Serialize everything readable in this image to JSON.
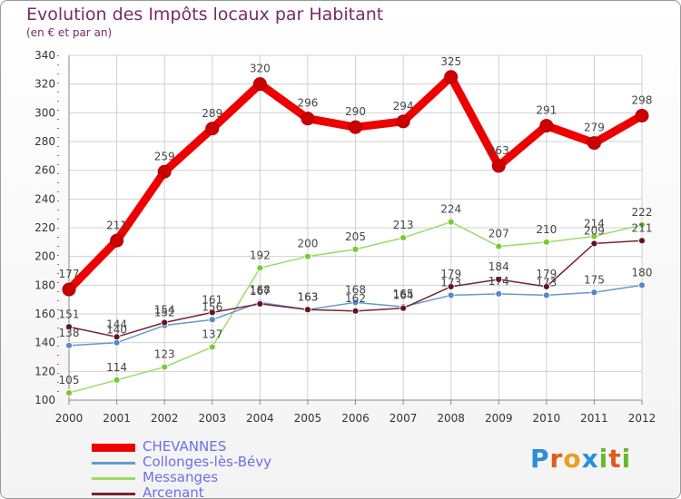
{
  "header": {
    "title": "Evolution des Impôts locaux par Habitant",
    "subtitle": "(en € et par an)"
  },
  "chart_data": {
    "type": "line",
    "title": "Evolution des Impôts locaux par Habitant",
    "subtitle": "(en € et par an)",
    "x": [
      "2000",
      "2001",
      "2002",
      "2003",
      "2004",
      "2005",
      "2006",
      "2007",
      "2008",
      "2009",
      "2010",
      "2011",
      "2012"
    ],
    "ylim": [
      100,
      340
    ],
    "yticks": [
      100,
      120,
      140,
      160,
      180,
      200,
      220,
      240,
      260,
      280,
      300,
      320,
      340
    ],
    "ytick_labels": [
      "100",
      "120",
      "140",
      "160",
      "180",
      "200",
      "220",
      "240",
      "260",
      "280",
      "300",
      "320",
      "340"
    ],
    "grid": true,
    "legend_position": "bottom-left",
    "series": [
      {
        "name": "CHEVANNES",
        "color": "#ee0000",
        "point_color": "#cc0000",
        "values": [
          177,
          211,
          259,
          289,
          320,
          296,
          290,
          294,
          325,
          263,
          291,
          279,
          298
        ]
      },
      {
        "name": "Collonges-lès-Bévy",
        "color": "#6699cc",
        "point_color": "#5588cc",
        "values": [
          138,
          140,
          152,
          156,
          168,
          163,
          168,
          165,
          173,
          174,
          173,
          175,
          180
        ]
      },
      {
        "name": "Messanges",
        "color": "#99dd66",
        "point_color": "#77cc33",
        "values": [
          105,
          114,
          123,
          137,
          192,
          200,
          205,
          213,
          224,
          207,
          210,
          214,
          222
        ]
      },
      {
        "name": "Arcenant",
        "color": "#772233",
        "point_color": "#661122",
        "values": [
          151,
          144,
          154,
          161,
          167,
          163,
          162,
          164,
          179,
          184,
          179,
          209,
          211
        ]
      }
    ]
  },
  "legend": {
    "items": [
      {
        "label": "CHEVANNES",
        "color": "#ee0000"
      },
      {
        "label": "Collonges-lès-Bévy",
        "color": "#6699cc"
      },
      {
        "label": "Messanges",
        "color": "#99dd66"
      },
      {
        "label": "Arcenant",
        "color": "#772233"
      }
    ]
  },
  "logo": {
    "text": "Proxiti",
    "letter_colors": [
      "#2a8fd8",
      "#e05a1c",
      "#e8a020",
      "#2a8fd8",
      "#6cb82c",
      "#e05a1c",
      "#6cb82c"
    ]
  }
}
